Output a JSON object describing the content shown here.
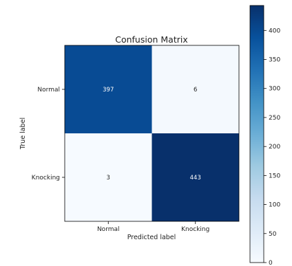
{
  "chart_data": {
    "type": "heatmap",
    "title": "Confusion Matrix",
    "xlabel": "Predicted label",
    "ylabel": "True label",
    "x_categories": [
      "Normal",
      "Knocking"
    ],
    "y_categories": [
      "Normal",
      "Knocking"
    ],
    "values": [
      [
        397,
        6
      ],
      [
        3,
        443
      ]
    ],
    "colormap": "Blues",
    "colorbar": {
      "range": [
        0,
        443
      ],
      "ticks": [
        0,
        50,
        100,
        150,
        200,
        250,
        300,
        350,
        400
      ]
    },
    "colors": {
      "low": "#f7fbff",
      "high": "#08306b"
    }
  }
}
